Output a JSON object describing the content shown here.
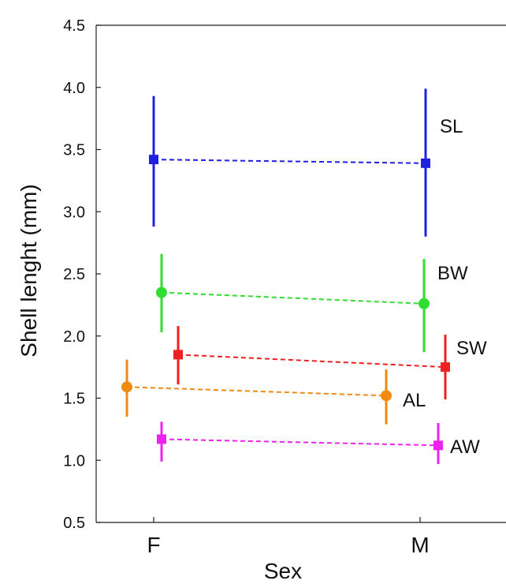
{
  "chart_data": {
    "type": "line",
    "xlabel": "Sex",
    "ylabel": "Shell lenght (mm)",
    "categories": [
      "F",
      "M"
    ],
    "ylim": [
      0.5,
      4.5
    ],
    "yticks": [
      "0.5",
      "1.0",
      "1.5",
      "2.0",
      "2.5",
      "3.0",
      "3.5",
      "4.0",
      "4.5"
    ],
    "grid": false,
    "legend": "none",
    "series": [
      {
        "name": "SL",
        "color": "#2020e0",
        "marker": "square",
        "points": [
          {
            "x": "F",
            "y": 3.42,
            "low": 2.88,
            "high": 3.93
          },
          {
            "x": "M",
            "y": 3.39,
            "low": 2.8,
            "high": 3.99
          }
        ]
      },
      {
        "name": "BW",
        "color": "#30dd30",
        "marker": "circle",
        "points": [
          {
            "x": "F",
            "y": 2.35,
            "low": 2.03,
            "high": 2.66
          },
          {
            "x": "M",
            "y": 2.26,
            "low": 1.87,
            "high": 2.62
          }
        ]
      },
      {
        "name": "SW",
        "color": "#ee2020",
        "marker": "square",
        "points": [
          {
            "x": "F",
            "y": 1.85,
            "low": 1.61,
            "high": 2.08
          },
          {
            "x": "M",
            "y": 1.75,
            "low": 1.49,
            "high": 2.01
          }
        ]
      },
      {
        "name": "AL",
        "color": "#f08a10",
        "marker": "circle",
        "points": [
          {
            "x": "F",
            "y": 1.59,
            "low": 1.35,
            "high": 1.81
          },
          {
            "x": "M",
            "y": 1.52,
            "low": 1.29,
            "high": 1.73
          }
        ]
      },
      {
        "name": "AW",
        "color": "#ee22ee",
        "marker": "square",
        "points": [
          {
            "x": "F",
            "y": 1.17,
            "low": 0.99,
            "high": 1.31
          },
          {
            "x": "M",
            "y": 1.12,
            "low": 0.97,
            "high": 1.3
          }
        ]
      }
    ]
  }
}
